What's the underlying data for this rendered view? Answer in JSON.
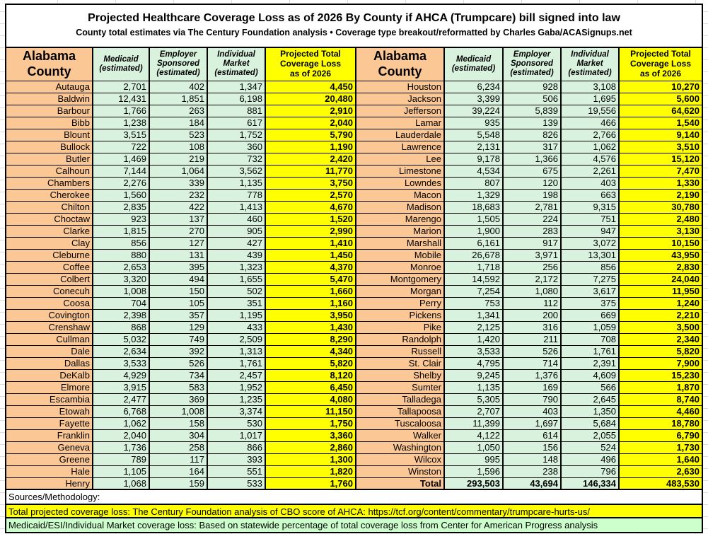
{
  "chart_data": {
    "type": "table",
    "title": "Projected Healthcare Coverage Loss as of 2026 By County if AHCA (Trumpcare) bill signed into law",
    "subtitle": "County total estimates via The Century Foundation analysis • Coverage type breakout/reformatted by Charles Gaba/ACASignups.net",
    "columns": [
      "Alabama County",
      "Medicaid (estimated)",
      "Employer Sponsored (estimated)",
      "Individual Market (estimated)",
      "Projected Total Coverage Loss as of 2026"
    ],
    "header_lines": {
      "county": "Alabama\nCounty",
      "medicaid": "Medicaid\n(estimated)",
      "employer": "Employer\nSponsored\n(estimated)",
      "individual": "Individual\nMarket\n(estimated)",
      "projected": "Projected Total\nCoverage Loss\nas of 2026"
    },
    "left_rows": [
      [
        "Autauga",
        "2,701",
        "402",
        "1,347",
        "4,450"
      ],
      [
        "Baldwin",
        "12,431",
        "1,851",
        "6,198",
        "20,480"
      ],
      [
        "Barbour",
        "1,766",
        "263",
        "881",
        "2,910"
      ],
      [
        "Bibb",
        "1,238",
        "184",
        "617",
        "2,040"
      ],
      [
        "Blount",
        "3,515",
        "523",
        "1,752",
        "5,790"
      ],
      [
        "Bullock",
        "722",
        "108",
        "360",
        "1,190"
      ],
      [
        "Butler",
        "1,469",
        "219",
        "732",
        "2,420"
      ],
      [
        "Calhoun",
        "7,144",
        "1,064",
        "3,562",
        "11,770"
      ],
      [
        "Chambers",
        "2,276",
        "339",
        "1,135",
        "3,750"
      ],
      [
        "Cherokee",
        "1,560",
        "232",
        "778",
        "2,570"
      ],
      [
        "Chilton",
        "2,835",
        "422",
        "1,413",
        "4,670"
      ],
      [
        "Choctaw",
        "923",
        "137",
        "460",
        "1,520"
      ],
      [
        "Clarke",
        "1,815",
        "270",
        "905",
        "2,990"
      ],
      [
        "Clay",
        "856",
        "127",
        "427",
        "1,410"
      ],
      [
        "Cleburne",
        "880",
        "131",
        "439",
        "1,450"
      ],
      [
        "Coffee",
        "2,653",
        "395",
        "1,323",
        "4,370"
      ],
      [
        "Colbert",
        "3,320",
        "494",
        "1,655",
        "5,470"
      ],
      [
        "Conecuh",
        "1,008",
        "150",
        "502",
        "1,660"
      ],
      [
        "Coosa",
        "704",
        "105",
        "351",
        "1,160"
      ],
      [
        "Covington",
        "2,398",
        "357",
        "1,195",
        "3,950"
      ],
      [
        "Crenshaw",
        "868",
        "129",
        "433",
        "1,430"
      ],
      [
        "Cullman",
        "5,032",
        "749",
        "2,509",
        "8,290"
      ],
      [
        "Dale",
        "2,634",
        "392",
        "1,313",
        "4,340"
      ],
      [
        "Dallas",
        "3,533",
        "526",
        "1,761",
        "5,820"
      ],
      [
        "DeKalb",
        "4,929",
        "734",
        "2,457",
        "8,120"
      ],
      [
        "Elmore",
        "3,915",
        "583",
        "1,952",
        "6,450"
      ],
      [
        "Escambia",
        "2,477",
        "369",
        "1,235",
        "4,080"
      ],
      [
        "Etowah",
        "6,768",
        "1,008",
        "3,374",
        "11,150"
      ],
      [
        "Fayette",
        "1,062",
        "158",
        "530",
        "1,750"
      ],
      [
        "Franklin",
        "2,040",
        "304",
        "1,017",
        "3,360"
      ],
      [
        "Geneva",
        "1,736",
        "258",
        "866",
        "2,860"
      ],
      [
        "Greene",
        "789",
        "117",
        "393",
        "1,300"
      ],
      [
        "Hale",
        "1,105",
        "164",
        "551",
        "1,820"
      ],
      [
        "Henry",
        "1,068",
        "159",
        "533",
        "1,760"
      ]
    ],
    "right_rows": [
      [
        "Houston",
        "6,234",
        "928",
        "3,108",
        "10,270"
      ],
      [
        "Jackson",
        "3,399",
        "506",
        "1,695",
        "5,600"
      ],
      [
        "Jefferson",
        "39,224",
        "5,839",
        "19,556",
        "64,620"
      ],
      [
        "Lamar",
        "935",
        "139",
        "466",
        "1,540"
      ],
      [
        "Lauderdale",
        "5,548",
        "826",
        "2,766",
        "9,140"
      ],
      [
        "Lawrence",
        "2,131",
        "317",
        "1,062",
        "3,510"
      ],
      [
        "Lee",
        "9,178",
        "1,366",
        "4,576",
        "15,120"
      ],
      [
        "Limestone",
        "4,534",
        "675",
        "2,261",
        "7,470"
      ],
      [
        "Lowndes",
        "807",
        "120",
        "403",
        "1,330"
      ],
      [
        "Macon",
        "1,329",
        "198",
        "663",
        "2,190"
      ],
      [
        "Madison",
        "18,683",
        "2,781",
        "9,315",
        "30,780"
      ],
      [
        "Marengo",
        "1,505",
        "224",
        "751",
        "2,480"
      ],
      [
        "Marion",
        "1,900",
        "283",
        "947",
        "3,130"
      ],
      [
        "Marshall",
        "6,161",
        "917",
        "3,072",
        "10,150"
      ],
      [
        "Mobile",
        "26,678",
        "3,971",
        "13,301",
        "43,950"
      ],
      [
        "Monroe",
        "1,718",
        "256",
        "856",
        "2,830"
      ],
      [
        "Montgomery",
        "14,592",
        "2,172",
        "7,275",
        "24,040"
      ],
      [
        "Morgan",
        "7,254",
        "1,080",
        "3,617",
        "11,950"
      ],
      [
        "Perry",
        "753",
        "112",
        "375",
        "1,240"
      ],
      [
        "Pickens",
        "1,341",
        "200",
        "669",
        "2,210"
      ],
      [
        "Pike",
        "2,125",
        "316",
        "1,059",
        "3,500"
      ],
      [
        "Randolph",
        "1,420",
        "211",
        "708",
        "2,340"
      ],
      [
        "Russell",
        "3,533",
        "526",
        "1,761",
        "5,820"
      ],
      [
        "St. Clair",
        "4,795",
        "714",
        "2,391",
        "7,900"
      ],
      [
        "Shelby",
        "9,245",
        "1,376",
        "4,609",
        "15,230"
      ],
      [
        "Sumter",
        "1,135",
        "169",
        "566",
        "1,870"
      ],
      [
        "Talladega",
        "5,305",
        "790",
        "2,645",
        "8,740"
      ],
      [
        "Tallapoosa",
        "2,707",
        "403",
        "1,350",
        "4,460"
      ],
      [
        "Tuscaloosa",
        "11,399",
        "1,697",
        "5,684",
        "18,780"
      ],
      [
        "Walker",
        "4,122",
        "614",
        "2,055",
        "6,790"
      ],
      [
        "Washington",
        "1,050",
        "156",
        "524",
        "1,730"
      ],
      [
        "Wilcox",
        "995",
        "148",
        "496",
        "1,640"
      ],
      [
        "Winston",
        "1,596",
        "238",
        "796",
        "2,630"
      ],
      [
        "Total",
        "293,503",
        "43,694",
        "146,334",
        "483,530"
      ]
    ]
  },
  "footer": {
    "sources_label": "Sources/Methodology:",
    "total_source": "Total projected coverage loss: The Century Foundation analysis of CBO score of AHCA: https://tcf.org/content/commentary/trumpcare-hurts-us/",
    "breakout_source": "Medicaid/ESI/Individual Market coverage loss: Based on statewide percentage of total coverage loss from Center for American Progress analysis"
  },
  "colors": {
    "county_fill": "#fbc795",
    "estimate_fill": "#d9f2de",
    "total_fill": "#ffff00",
    "footer_green": "#ccffcc",
    "border": "#000000"
  }
}
